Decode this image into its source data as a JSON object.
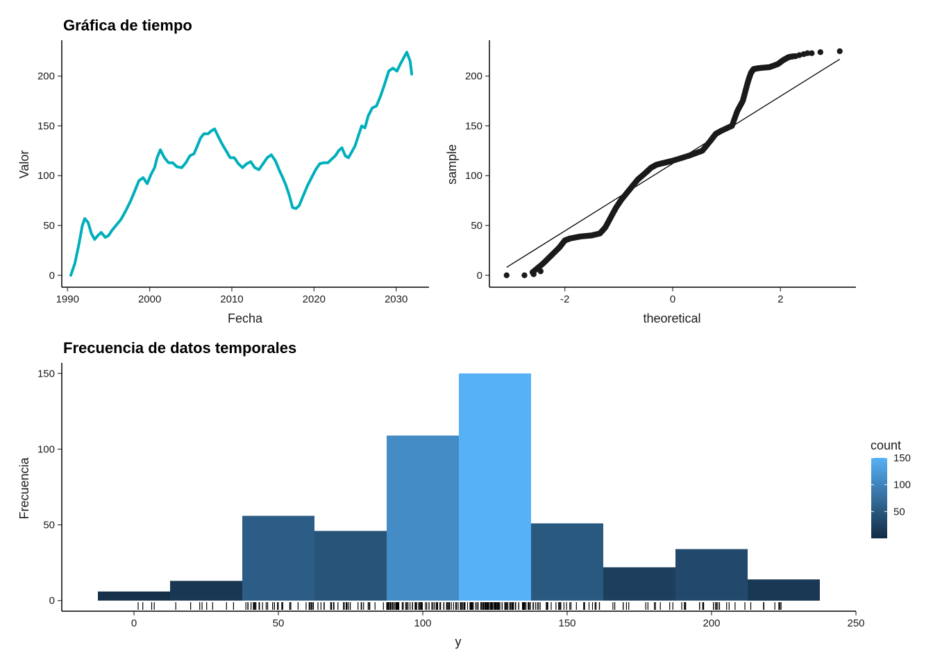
{
  "chart_data": [
    {
      "type": "line",
      "title": "Gráfica de tiempo",
      "xlabel": "Fecha",
      "ylabel": "Valor",
      "xlim": [
        1989.3,
        2034.0
      ],
      "ylim": [
        -12,
        236
      ],
      "xticks": [
        1990,
        2000,
        2010,
        2020,
        2030
      ],
      "yticks": [
        0,
        50,
        100,
        150,
        200
      ],
      "color": "#00AFBB",
      "grid": false,
      "series": [
        {
          "x": [
            1990.4,
            1990.9,
            1991.4,
            1991.8,
            1992.1,
            1992.5,
            1992.9,
            1993.3,
            1993.7,
            1994.1,
            1994.6,
            1995.0,
            1995.4,
            1995.9,
            1996.5,
            1997.1,
            1997.7,
            1998.2,
            1998.7,
            1999.2,
            1999.7,
            2000.2,
            2000.6,
            2000.9,
            2001.3,
            2001.8,
            2002.3,
            2002.8,
            2003.3,
            2003.9,
            2004.4,
            2004.9,
            2005.4,
            2005.8,
            2006.2,
            2006.6,
            2007.1,
            2007.5,
            2007.9,
            2008.3,
            2008.8,
            2009.3,
            2009.8,
            2010.3,
            2010.8,
            2011.3,
            2011.8,
            2012.3,
            2012.8,
            2013.3,
            2013.8,
            2014.3,
            2014.8,
            2015.3,
            2015.8,
            2016.2,
            2016.6,
            2017.0,
            2017.4,
            2017.8,
            2018.2,
            2018.7,
            2019.2,
            2019.7,
            2020.2,
            2020.7,
            2021.2,
            2021.7,
            2022.2,
            2022.6,
            2023.0,
            2023.4,
            2023.8,
            2024.2,
            2024.6,
            2025.0,
            2025.4,
            2025.8,
            2026.2,
            2026.6,
            2027.1,
            2027.6,
            2028.1,
            2028.6,
            2029.1,
            2029.6,
            2030.1,
            2030.5,
            2030.9,
            2031.3,
            2031.7,
            2031.9
          ],
          "y": [
            0,
            12,
            32,
            50,
            57,
            53,
            42,
            36,
            40,
            43,
            38,
            40,
            45,
            50,
            56,
            65,
            75,
            85,
            95,
            98,
            92,
            102,
            108,
            118,
            126,
            118,
            113,
            113,
            109,
            108,
            113,
            120,
            122,
            130,
            138,
            142,
            142,
            145,
            147,
            140,
            132,
            125,
            118,
            118,
            112,
            108,
            112,
            114,
            108,
            106,
            112,
            118,
            121,
            115,
            105,
            98,
            90,
            80,
            68,
            67,
            70,
            80,
            90,
            98,
            106,
            112,
            113,
            113,
            117,
            120,
            125,
            128,
            120,
            118,
            124,
            130,
            140,
            150,
            148,
            160,
            168,
            170,
            180,
            192,
            205,
            208,
            205,
            212,
            218,
            224,
            215,
            202
          ]
        }
      ]
    },
    {
      "type": "scatter",
      "title": "",
      "xlabel": "theoretical",
      "ylabel": "sample",
      "xlim": [
        -3.4,
        3.4
      ],
      "ylim": [
        -12,
        236
      ],
      "xticks": [
        -2,
        0,
        2
      ],
      "yticks": [
        0,
        50,
        100,
        150,
        200
      ],
      "grid": false,
      "reference_line": {
        "x": [
          -3.08,
          3.1
        ],
        "y": [
          8,
          217
        ]
      },
      "curve": {
        "x": [
          -2.6,
          -2.4,
          -2.25,
          -2.1,
          -2.0,
          -1.9,
          -1.7,
          -1.5,
          -1.35,
          -1.25,
          -1.15,
          -1.05,
          -0.95,
          -0.8,
          -0.65,
          -0.5,
          -0.4,
          -0.3,
          -0.15,
          0.0,
          0.3,
          0.55,
          0.7,
          0.8,
          0.9,
          1.1,
          1.2,
          1.3,
          1.35,
          1.4,
          1.45,
          1.5,
          1.6,
          1.8,
          1.95,
          2.05,
          2.15,
          2.25
        ],
        "y": [
          3,
          12,
          20,
          28,
          35,
          37,
          39,
          40,
          42,
          48,
          58,
          68,
          76,
          86,
          96,
          103,
          108,
          111,
          113,
          115,
          120,
          125,
          135,
          142,
          145,
          150,
          165,
          175,
          185,
          195,
          203,
          207,
          208,
          209,
          212,
          216,
          219,
          220
        ]
      },
      "outlier_points": {
        "x": [
          -3.08,
          -2.75,
          -2.58,
          -2.45,
          2.28,
          2.35,
          2.43,
          2.5,
          2.58,
          2.74,
          3.1
        ],
        "y": [
          0,
          0,
          1,
          4,
          220,
          221,
          222,
          223,
          223,
          224,
          225
        ]
      }
    },
    {
      "type": "bar",
      "title": "Frecuencia de datos temporales",
      "xlabel": "y",
      "ylabel": "Frecuencia",
      "xlim": [
        -25,
        250
      ],
      "ylim": [
        -7,
        157
      ],
      "xticks": [
        0,
        50,
        100,
        150,
        200,
        250
      ],
      "yticks": [
        0,
        50,
        100,
        150
      ],
      "bins": [
        {
          "from": -12.5,
          "to": 12.5,
          "count": 6
        },
        {
          "from": 12.5,
          "to": 37.5,
          "count": 13
        },
        {
          "from": 37.5,
          "to": 62.5,
          "count": 56
        },
        {
          "from": 62.5,
          "to": 87.5,
          "count": 46
        },
        {
          "from": 87.5,
          "to": 112.5,
          "count": 109
        },
        {
          "from": 112.5,
          "to": 137.5,
          "count": 150
        },
        {
          "from": 137.5,
          "to": 162.5,
          "count": 51
        },
        {
          "from": 162.5,
          "to": 187.5,
          "count": 22
        },
        {
          "from": 187.5,
          "to": 212.5,
          "count": 34
        },
        {
          "from": 212.5,
          "to": 237.5,
          "count": 14
        }
      ],
      "color_scale": {
        "low": "#132B43",
        "high": "#56B1F7",
        "min": 0,
        "max": 150
      },
      "legend": {
        "title": "count",
        "ticks": [
          50,
          100,
          150
        ],
        "placement": "right"
      },
      "rug": true,
      "grid": false
    }
  ]
}
